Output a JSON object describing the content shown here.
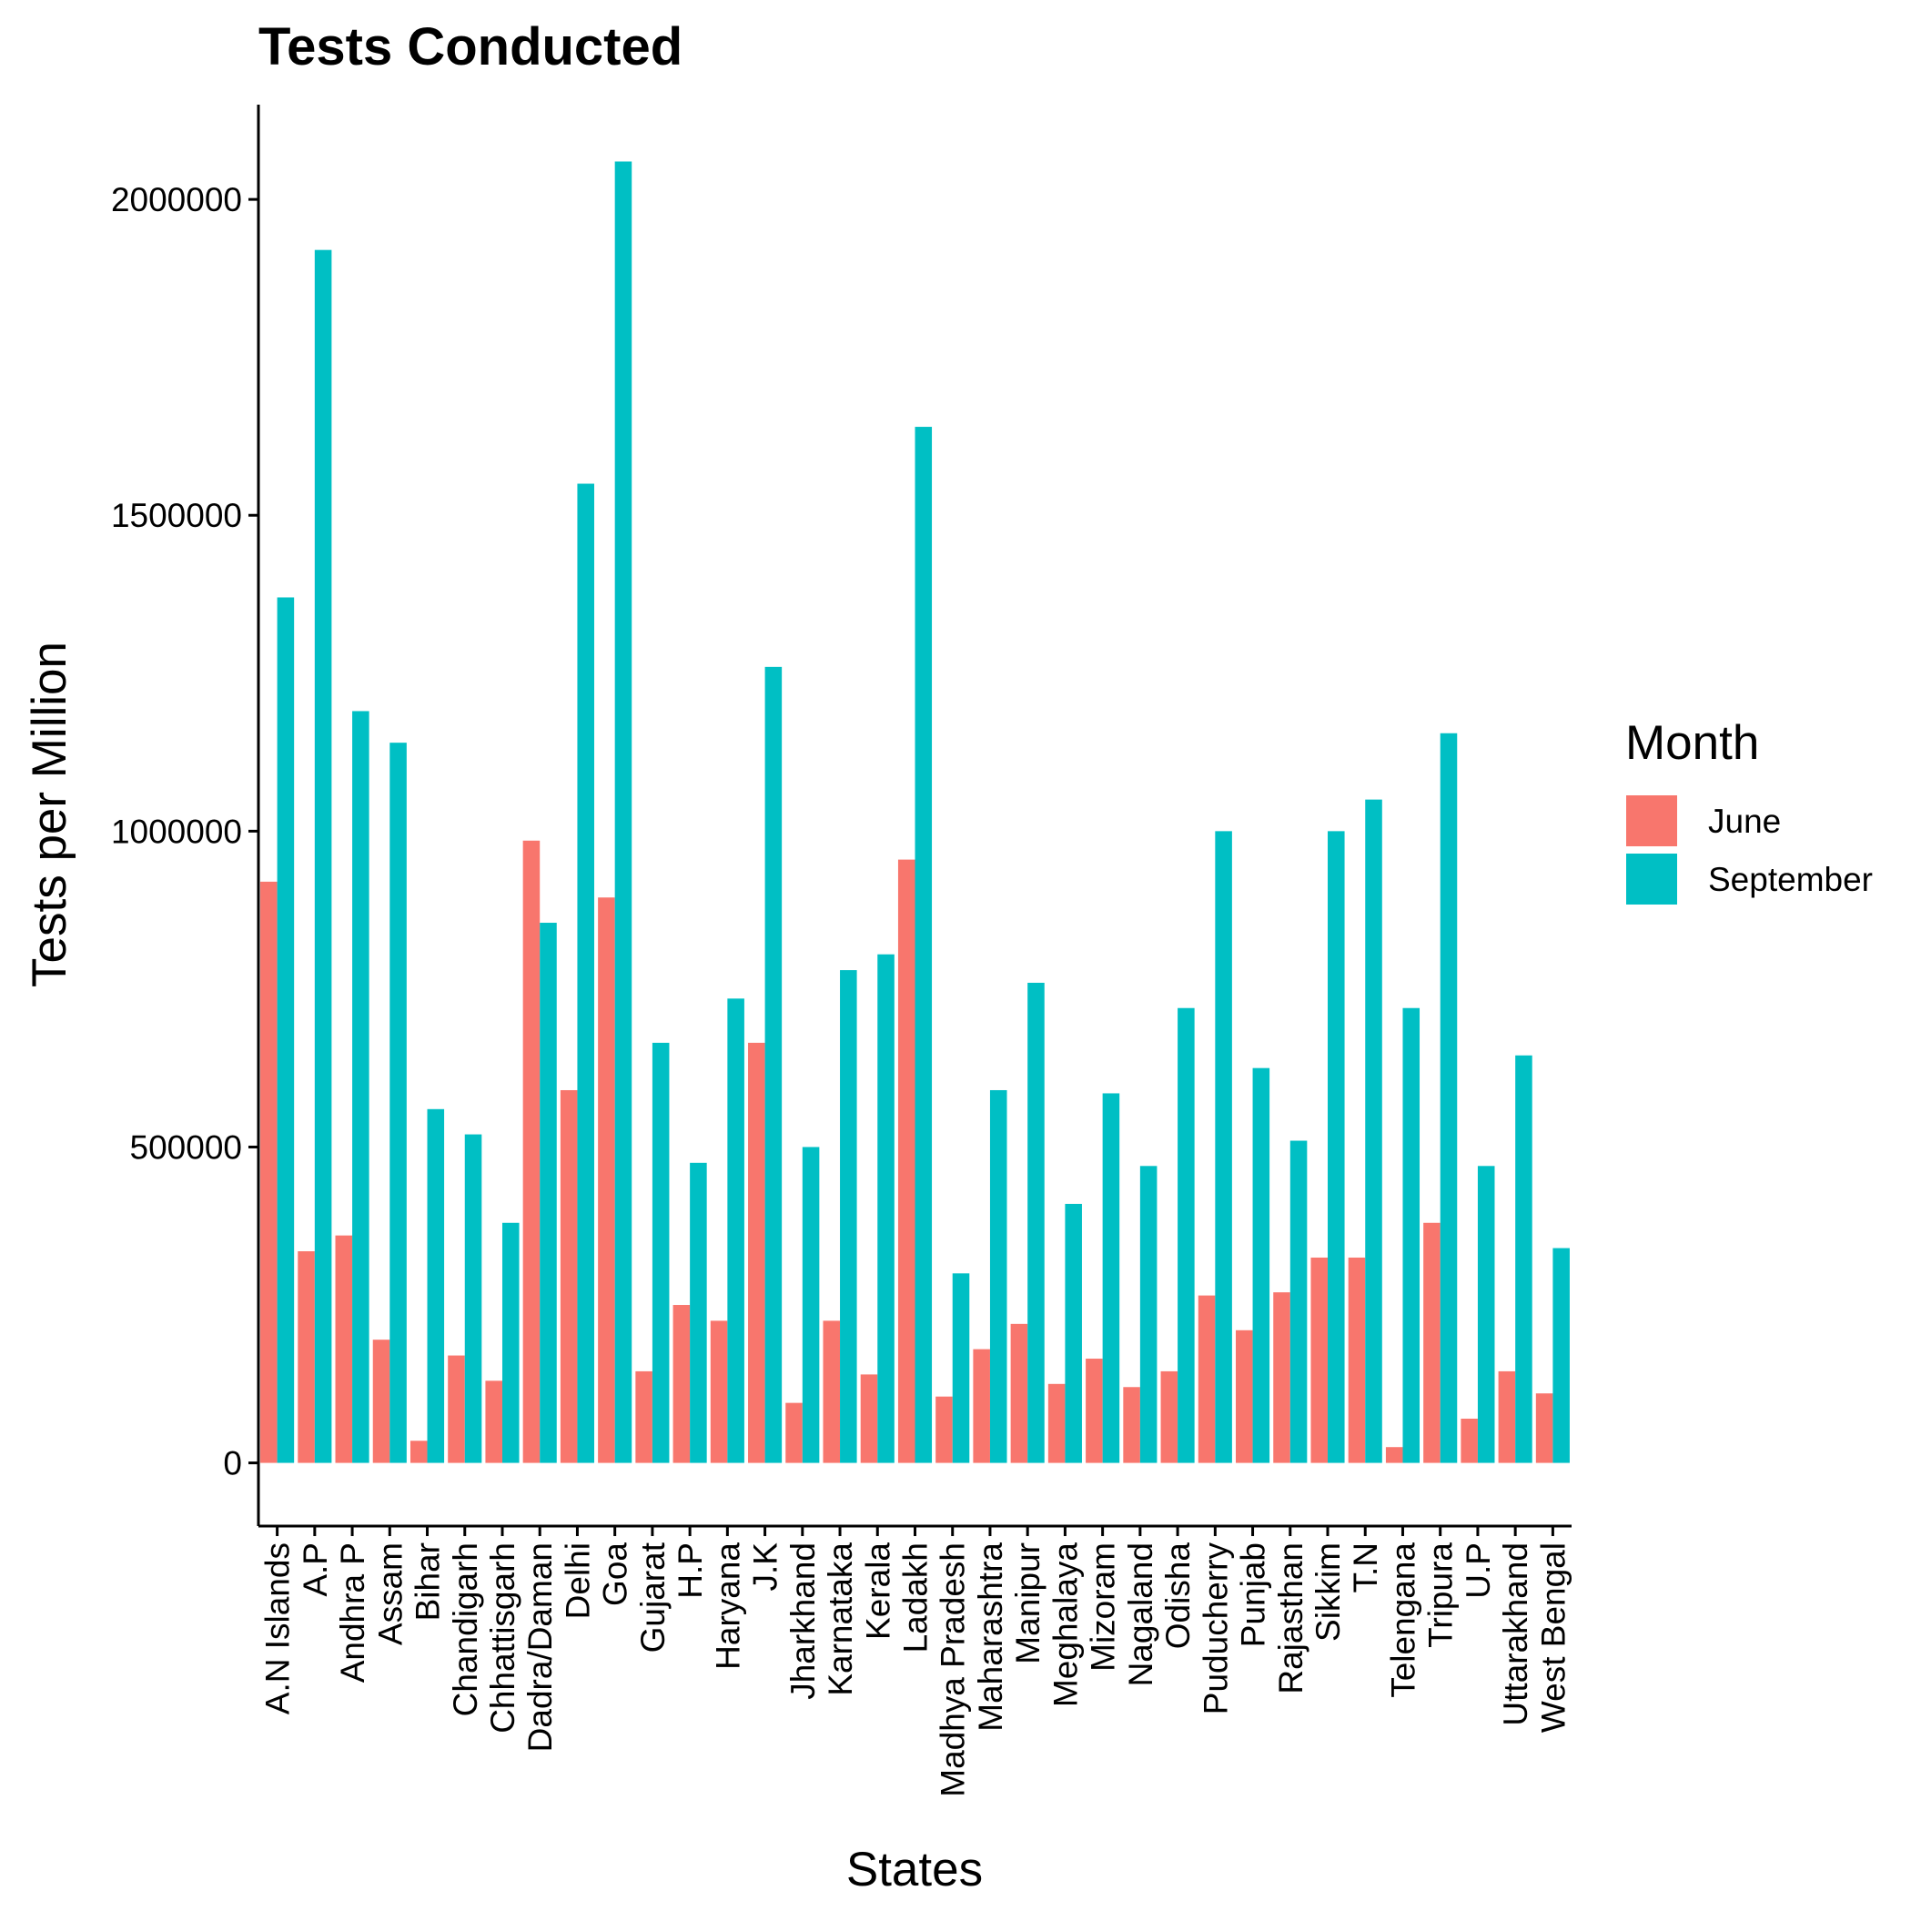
{
  "chart_data": {
    "type": "bar",
    "title": "Tests Conducted",
    "xlabel": "States",
    "ylabel": "Tests per Million",
    "ylim": [
      -100000,
      2150000
    ],
    "yticks": [
      "0",
      "500000",
      "1000000",
      "1500000",
      "2000000"
    ],
    "grid": false,
    "legend": {
      "title": "Month",
      "placement": "right"
    },
    "categories": [
      "A.N Islands",
      "A.P",
      "Andhra P",
      "Assam",
      "Bihar",
      "Chandigarh",
      "Chhattisgarh",
      "Dadra/Daman",
      "Delhi",
      "Goa",
      "Gujarat",
      "H.P",
      "Haryana",
      "J.K",
      "Jharkhand",
      "Karnataka",
      "Kerala",
      "Ladakh",
      "Madhya Pradesh",
      "Maharashtra",
      "Manipur",
      "Meghalaya",
      "Mizoram",
      "Nagaland",
      "Odisha",
      "Puducherry",
      "Punjab",
      "Rajasthan",
      "Sikkim",
      "T.N",
      "Telengana",
      "Tripura",
      "U.P",
      "Uttarakhand",
      "West Bengal"
    ],
    "series": [
      {
        "name": "June",
        "color": "#F8766D",
        "values": [
          920000,
          335000,
          360000,
          195000,
          35000,
          170000,
          130000,
          985000,
          590000,
          895000,
          145000,
          250000,
          225000,
          665000,
          95000,
          225000,
          140000,
          955000,
          105000,
          180000,
          220000,
          125000,
          165000,
          120000,
          145000,
          265000,
          210000,
          270000,
          325000,
          325000,
          25000,
          380000,
          70000,
          145000,
          110000
        ]
      },
      {
        "name": "September",
        "color": "#00BFC4",
        "values": [
          1370000,
          1920000,
          1190000,
          1140000,
          560000,
          520000,
          380000,
          855000,
          1550000,
          2060000,
          665000,
          475000,
          735000,
          1260000,
          500000,
          780000,
          805000,
          1640000,
          300000,
          590000,
          760000,
          410000,
          585000,
          470000,
          720000,
          1000000,
          625000,
          510000,
          1000000,
          1050000,
          720000,
          1155000,
          470000,
          645000,
          340000
        ]
      }
    ]
  }
}
